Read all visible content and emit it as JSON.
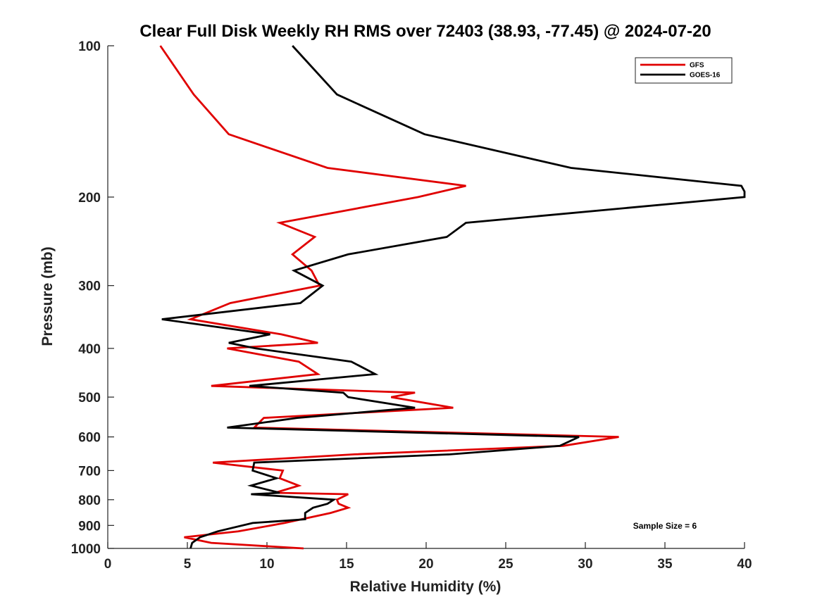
{
  "chart_data": {
    "type": "line",
    "title": "Clear Full Disk Weekly RH RMS over 72403 (38.93, -77.45) @ 2024-07-20",
    "xlabel": "Relative Humidity (%)",
    "ylabel": "Pressure (mb)",
    "xlim": [
      0,
      40
    ],
    "ylim": [
      100,
      1000
    ],
    "y_scale": "log",
    "y_reversed": true,
    "xticks": [
      0,
      5,
      10,
      15,
      20,
      25,
      30,
      35,
      40
    ],
    "yticks": [
      100,
      200,
      300,
      400,
      500,
      600,
      700,
      800,
      900,
      1000
    ],
    "grid": false,
    "legend_position": "top-right",
    "annotation": "Sample Size = 6",
    "series": [
      {
        "name": "GFS",
        "color": "#e00000",
        "points": [
          [
            3.3,
            100
          ],
          [
            5.4,
            125
          ],
          [
            7.6,
            150
          ],
          [
            13.8,
            175
          ],
          [
            22.5,
            190
          ],
          [
            19.5,
            200
          ],
          [
            10.8,
            225
          ],
          [
            13.0,
            240
          ],
          [
            11.6,
            260
          ],
          [
            12.8,
            280
          ],
          [
            13.3,
            300
          ],
          [
            7.7,
            325
          ],
          [
            5.2,
            350
          ],
          [
            10.9,
            375
          ],
          [
            13.2,
            390
          ],
          [
            7.5,
            400
          ],
          [
            12.0,
            425
          ],
          [
            13.2,
            450
          ],
          [
            6.5,
            475
          ],
          [
            19.3,
            490
          ],
          [
            17.8,
            500
          ],
          [
            21.7,
            525
          ],
          [
            9.8,
            550
          ],
          [
            9.2,
            575
          ],
          [
            32.1,
            600
          ],
          [
            28.6,
            625
          ],
          [
            15.5,
            650
          ],
          [
            6.6,
            675
          ],
          [
            11.0,
            700
          ],
          [
            10.8,
            725
          ],
          [
            12.0,
            750
          ],
          [
            10.5,
            775
          ],
          [
            15.1,
            780
          ],
          [
            14.4,
            800
          ],
          [
            14.5,
            815
          ],
          [
            15.1,
            830
          ],
          [
            14.0,
            850
          ],
          [
            11.1,
            890
          ],
          [
            8.2,
            925
          ],
          [
            4.8,
            950
          ],
          [
            6.5,
            975
          ],
          [
            12.3,
            1000
          ]
        ]
      },
      {
        "name": "GOES-16",
        "color": "#000000",
        "points": [
          [
            11.6,
            100
          ],
          [
            14.4,
            125
          ],
          [
            19.9,
            150
          ],
          [
            29.1,
            175
          ],
          [
            39.8,
            190
          ],
          [
            40.0,
            195
          ],
          [
            40.0,
            200
          ],
          [
            22.5,
            225
          ],
          [
            21.3,
            240
          ],
          [
            15.1,
            260
          ],
          [
            11.7,
            280
          ],
          [
            13.5,
            300
          ],
          [
            12.1,
            325
          ],
          [
            3.4,
            350
          ],
          [
            10.2,
            375
          ],
          [
            7.6,
            390
          ],
          [
            9.3,
            400
          ],
          [
            15.3,
            425
          ],
          [
            16.8,
            450
          ],
          [
            8.9,
            475
          ],
          [
            14.8,
            490
          ],
          [
            15.1,
            500
          ],
          [
            19.3,
            525
          ],
          [
            11.9,
            550
          ],
          [
            7.5,
            575
          ],
          [
            29.6,
            600
          ],
          [
            28.4,
            625
          ],
          [
            21.5,
            650
          ],
          [
            9.2,
            675
          ],
          [
            9.1,
            700
          ],
          [
            10.6,
            725
          ],
          [
            9.0,
            750
          ],
          [
            10.8,
            775
          ],
          [
            9.0,
            780
          ],
          [
            14.2,
            800
          ],
          [
            13.8,
            815
          ],
          [
            12.9,
            830
          ],
          [
            12.4,
            850
          ],
          [
            12.4,
            875
          ],
          [
            9.1,
            890
          ],
          [
            6.9,
            925
          ],
          [
            5.8,
            950
          ],
          [
            5.3,
            975
          ],
          [
            5.2,
            1000
          ]
        ]
      }
    ]
  }
}
